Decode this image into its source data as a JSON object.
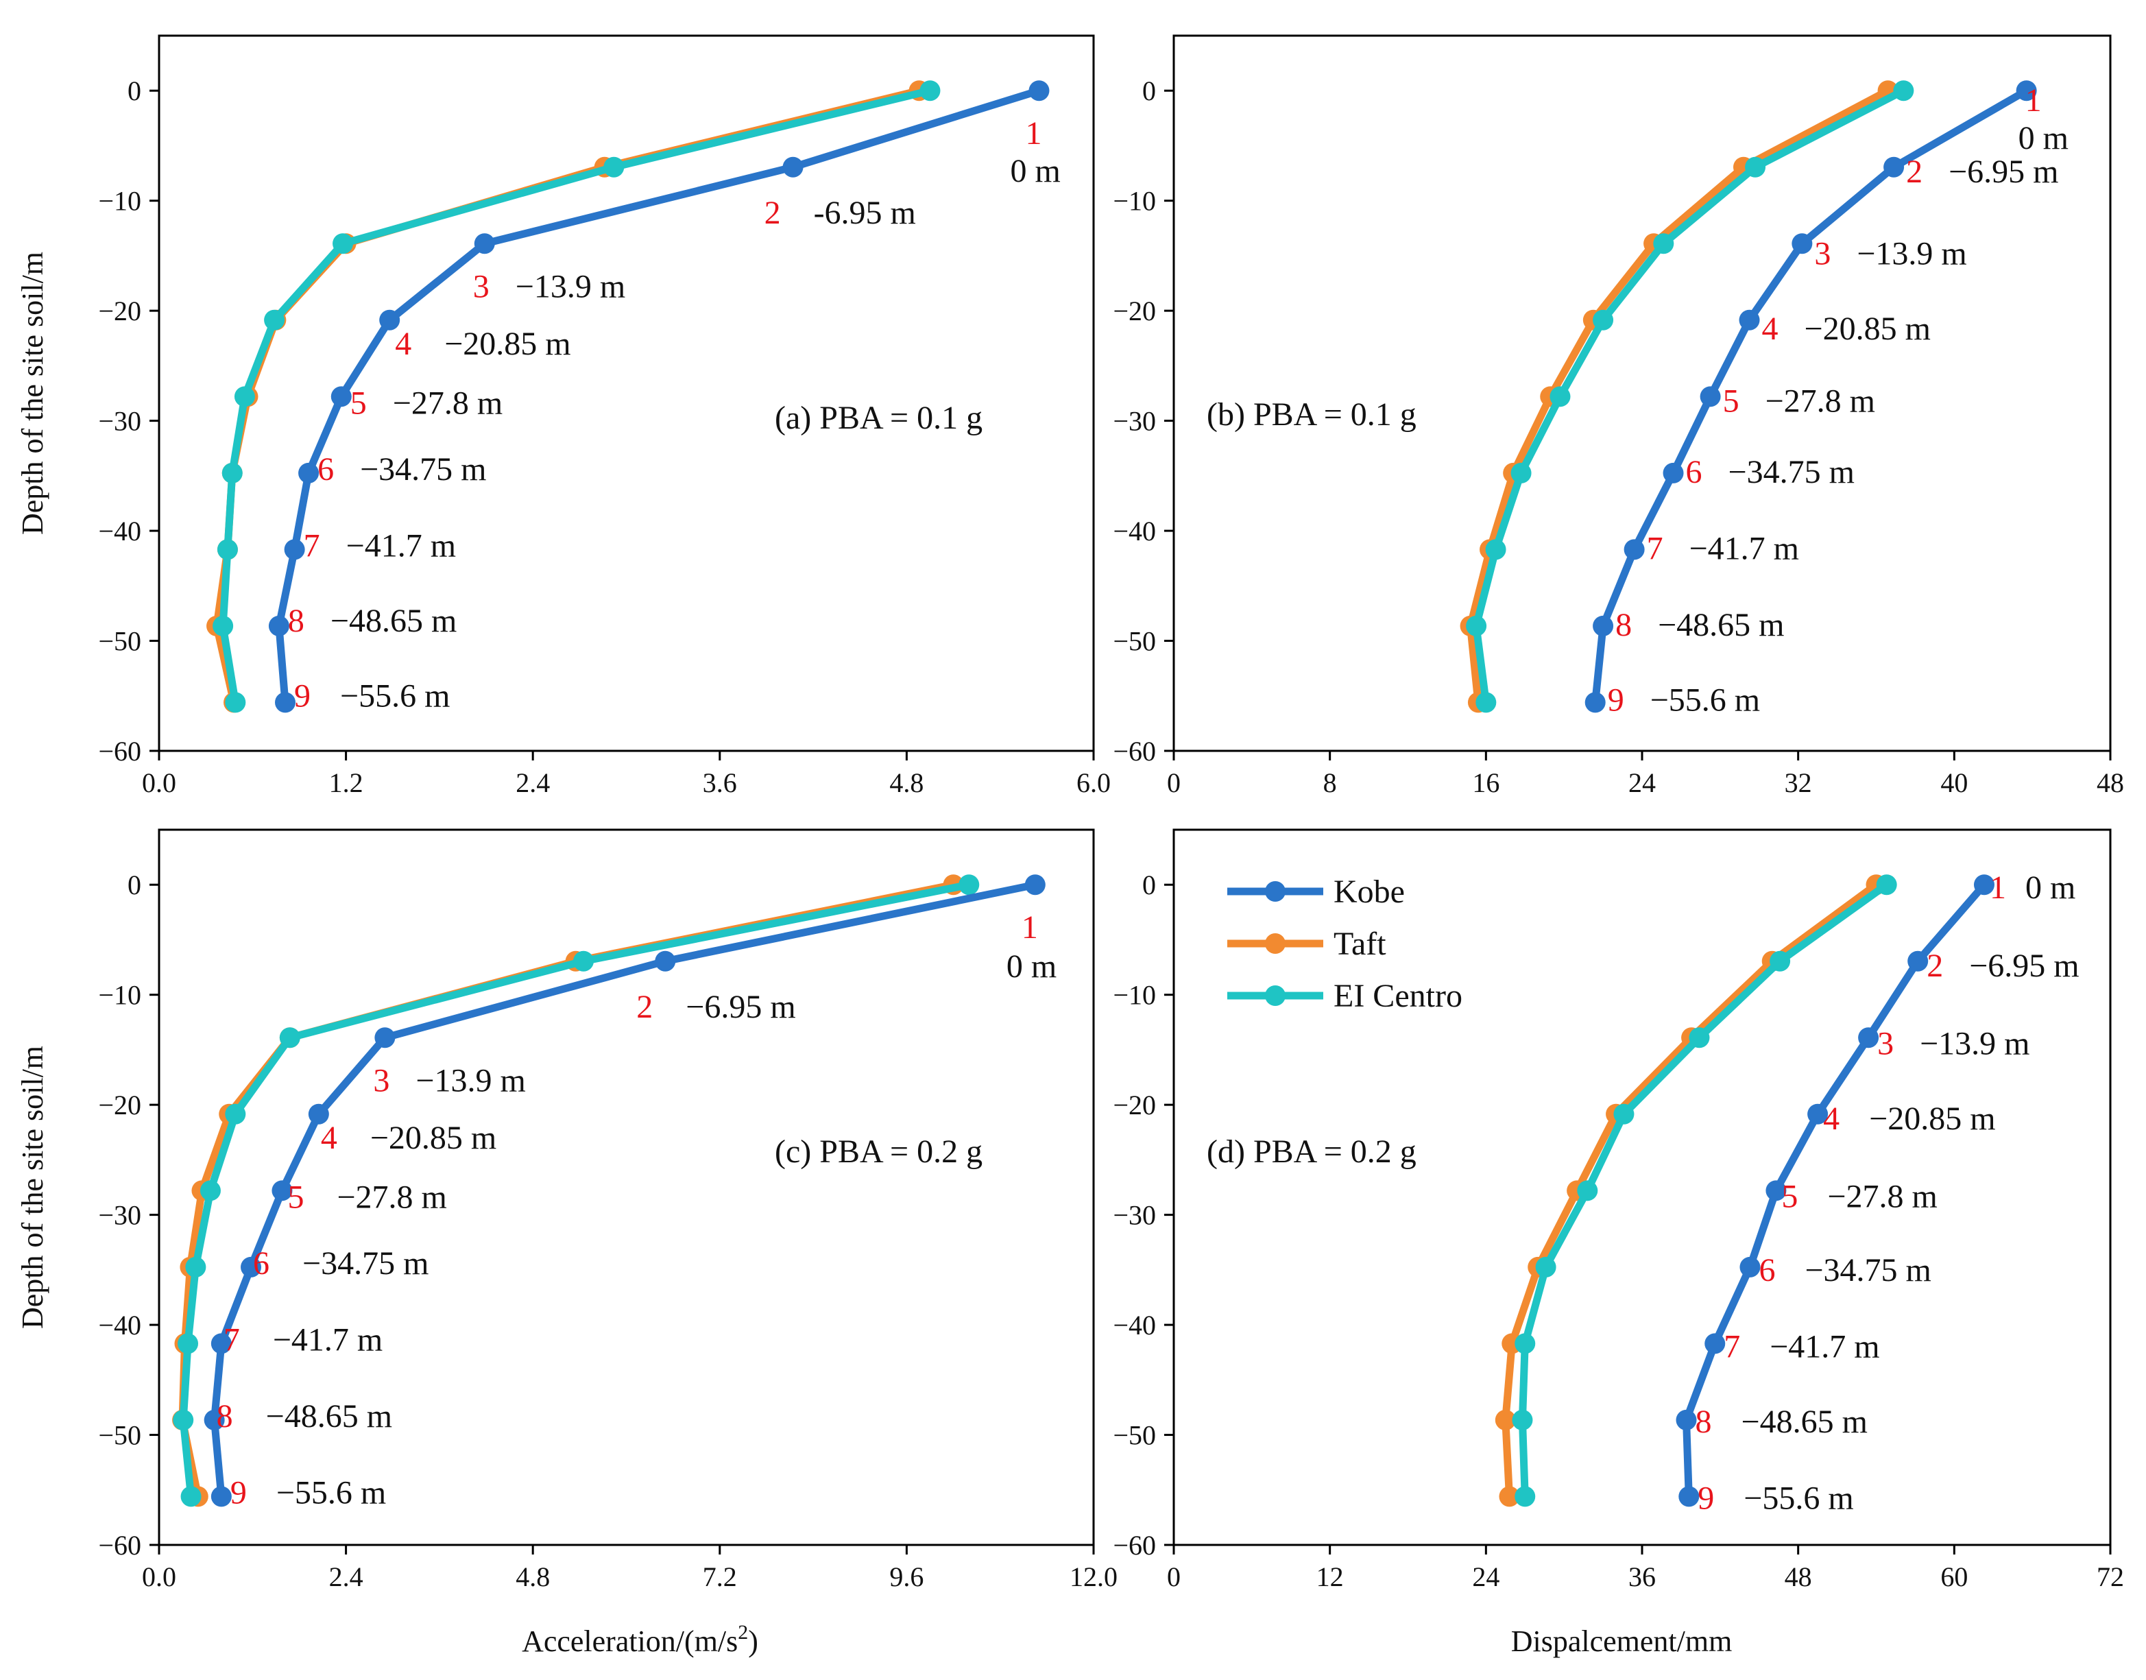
{
  "chart_data": [
    {
      "type": "line",
      "panel": "a",
      "subtitle": "(a)  PBA = 0.1 g",
      "xlabel": "",
      "ylabel": "Depth of the site soil/m",
      "xlim": [
        0,
        6.0
      ],
      "xticks": [
        "0.0",
        "1.2",
        "2.4",
        "3.6",
        "4.8",
        "6.0"
      ],
      "ylim": [
        -60,
        5
      ],
      "yticks": [
        "0",
        "−10",
        "−20",
        "−30",
        "−40",
        "−50",
        "−60"
      ],
      "depths": [
        0,
        -6.95,
        -13.9,
        -20.85,
        -27.8,
        -34.75,
        -41.7,
        -48.65,
        -55.6
      ],
      "series": [
        {
          "name": "Kobe",
          "color": "#2a75c9",
          "values": [
            5.65,
            4.07,
            2.09,
            1.48,
            1.17,
            0.96,
            0.87,
            0.77,
            0.81
          ]
        },
        {
          "name": "Taft",
          "color": "#f28a30",
          "values": [
            4.88,
            2.86,
            1.2,
            0.75,
            0.57,
            0.47,
            0.44,
            0.37,
            0.48
          ]
        },
        {
          "name": "EI Centro",
          "color": "#1fc4c4",
          "values": [
            4.95,
            2.92,
            1.18,
            0.74,
            0.55,
            0.47,
            0.44,
            0.41,
            0.49
          ]
        }
      ],
      "point_labels": [
        {
          "num": "1",
          "text": "0 m"
        },
        {
          "num": "2",
          "text": "-6.95 m"
        },
        {
          "num": "3",
          "text": "−13.9 m"
        },
        {
          "num": "4",
          "text": "−20.85 m"
        },
        {
          "num": "5",
          "text": "−27.8 m"
        },
        {
          "num": "6",
          "text": "−34.75 m"
        },
        {
          "num": "7",
          "text": "−41.7 m"
        },
        {
          "num": "8",
          "text": "−48.65 m"
        },
        {
          "num": "9",
          "text": "−55.6 m"
        }
      ]
    },
    {
      "type": "line",
      "panel": "b",
      "subtitle": "(b)  PBA = 0.1 g",
      "xlabel": "",
      "ylabel": "",
      "xlim": [
        0,
        48
      ],
      "xticks": [
        "0",
        "8",
        "16",
        "24",
        "32",
        "40",
        "48"
      ],
      "ylim": [
        -60,
        5
      ],
      "yticks": [
        "0",
        "−10",
        "−20",
        "−30",
        "−40",
        "−50",
        "−60"
      ],
      "depths": [
        0,
        -6.95,
        -13.9,
        -20.85,
        -27.8,
        -34.75,
        -41.7,
        -48.65,
        -55.6
      ],
      "series": [
        {
          "name": "Kobe",
          "color": "#2a75c9",
          "values": [
            43.7,
            36.9,
            32.2,
            29.5,
            27.5,
            25.6,
            23.6,
            22.0,
            21.6
          ]
        },
        {
          "name": "Taft",
          "color": "#f28a30",
          "values": [
            36.6,
            29.2,
            24.6,
            21.5,
            19.3,
            17.4,
            16.2,
            15.2,
            15.6
          ]
        },
        {
          "name": "EI Centro",
          "color": "#1fc4c4",
          "values": [
            37.4,
            29.8,
            25.1,
            22.0,
            19.8,
            17.8,
            16.5,
            15.5,
            16.0
          ]
        }
      ],
      "point_labels": [
        {
          "num": "1",
          "text": "0 m"
        },
        {
          "num": "2",
          "text": "−6.95 m"
        },
        {
          "num": "3",
          "text": "−13.9 m"
        },
        {
          "num": "4",
          "text": "−20.85 m"
        },
        {
          "num": "5",
          "text": "−27.8 m"
        },
        {
          "num": "6",
          "text": "−34.75 m"
        },
        {
          "num": "7",
          "text": "−41.7 m"
        },
        {
          "num": "8",
          "text": "−48.65 m"
        },
        {
          "num": "9",
          "text": "−55.6 m"
        }
      ]
    },
    {
      "type": "line",
      "panel": "c",
      "subtitle": "(c)  PBA = 0.2 g",
      "xlabel": "Acceleration/(m/s²)",
      "ylabel": "Depth of the site soil/m",
      "xlim": [
        0,
        12.0
      ],
      "xticks": [
        "0.0",
        "2.4",
        "4.8",
        "7.2",
        "9.6",
        "12.0"
      ],
      "ylim": [
        -60,
        5
      ],
      "yticks": [
        "0",
        "−10",
        "−20",
        "−30",
        "−40",
        "−50",
        "−60"
      ],
      "depths": [
        0,
        -6.95,
        -13.9,
        -20.85,
        -27.8,
        -34.75,
        -41.7,
        -48.65,
        -55.6
      ],
      "series": [
        {
          "name": "Kobe",
          "color": "#2a75c9",
          "values": [
            11.25,
            6.5,
            2.9,
            2.05,
            1.58,
            1.18,
            0.8,
            0.71,
            0.8
          ]
        },
        {
          "name": "Taft",
          "color": "#f28a30",
          "values": [
            10.2,
            5.35,
            1.68,
            0.9,
            0.55,
            0.4,
            0.33,
            0.3,
            0.5
          ]
        },
        {
          "name": "EI Centro",
          "color": "#1fc4c4",
          "values": [
            10.4,
            5.45,
            1.68,
            0.98,
            0.66,
            0.47,
            0.37,
            0.31,
            0.41
          ]
        }
      ],
      "point_labels": [
        {
          "num": "1",
          "text": "0 m"
        },
        {
          "num": "2",
          "text": "−6.95 m"
        },
        {
          "num": "3",
          "text": "−13.9 m"
        },
        {
          "num": "4",
          "text": "−20.85 m"
        },
        {
          "num": "5",
          "text": "−27.8 m"
        },
        {
          "num": "6",
          "text": "−34.75 m"
        },
        {
          "num": "7",
          "text": "−41.7 m"
        },
        {
          "num": "8",
          "text": "−48.65 m"
        },
        {
          "num": "9",
          "text": "−55.6 m"
        }
      ]
    },
    {
      "type": "line",
      "panel": "d",
      "subtitle": "(d)  PBA = 0.2 g",
      "xlabel": "Dispalcement/mm",
      "ylabel": "",
      "xlim": [
        0,
        72
      ],
      "xticks": [
        "0",
        "12",
        "24",
        "36",
        "48",
        "60",
        "72"
      ],
      "ylim": [
        -60,
        5
      ],
      "yticks": [
        "0",
        "−10",
        "−20",
        "−30",
        "−40",
        "−50",
        "−60"
      ],
      "depths": [
        0,
        -6.95,
        -13.9,
        -20.85,
        -27.8,
        -34.75,
        -41.7,
        -48.65,
        -55.6
      ],
      "series": [
        {
          "name": "Kobe",
          "color": "#2a75c9",
          "values": [
            62.3,
            57.2,
            53.4,
            49.5,
            46.3,
            44.3,
            41.6,
            39.4,
            39.6
          ]
        },
        {
          "name": "Taft",
          "color": "#f28a30",
          "values": [
            54.0,
            46.0,
            39.8,
            34.0,
            31.0,
            28.0,
            26.0,
            25.5,
            25.8
          ]
        },
        {
          "name": "EI Centro",
          "color": "#1fc4c4",
          "values": [
            54.8,
            46.6,
            40.4,
            34.6,
            31.8,
            28.6,
            27.0,
            26.8,
            27.0
          ]
        }
      ],
      "point_labels": [
        {
          "num": "1",
          "text": "0 m"
        },
        {
          "num": "2",
          "text": "−6.95 m"
        },
        {
          "num": "3",
          "text": "−13.9 m"
        },
        {
          "num": "4",
          "text": "−20.85 m"
        },
        {
          "num": "5",
          "text": "−27.8 m"
        },
        {
          "num": "6",
          "text": "−34.75 m"
        },
        {
          "num": "7",
          "text": "−41.7 m"
        },
        {
          "num": "8",
          "text": "−48.65 m"
        },
        {
          "num": "9",
          "text": "−55.6 m"
        }
      ],
      "legend": {
        "placement": "top-left",
        "entries": [
          "Kobe",
          "Taft",
          "EI Centro"
        ]
      }
    }
  ]
}
